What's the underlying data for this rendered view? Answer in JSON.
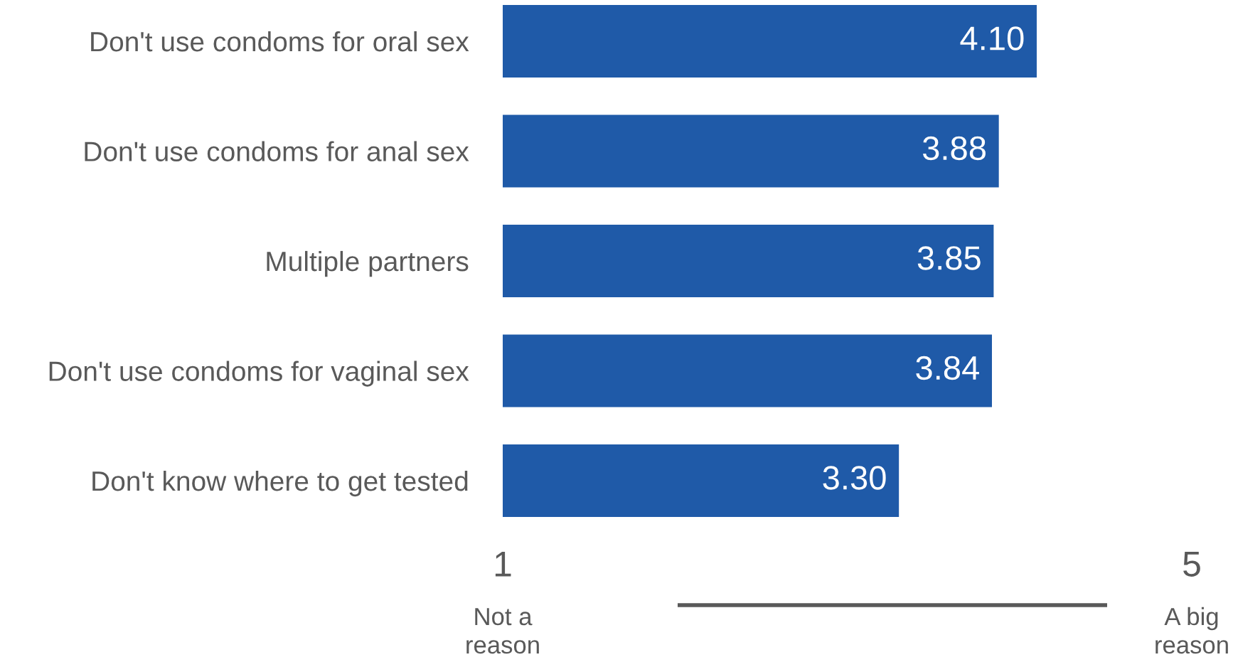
{
  "chart_data": {
    "type": "bar",
    "orientation": "horizontal",
    "categories": [
      "Don't use condoms for oral sex",
      "Don't use condoms for anal sex",
      "Multiple partners",
      "Don't use condoms for vaginal sex",
      "Don't know where to get tested"
    ],
    "values": [
      4.1,
      3.88,
      3.85,
      3.84,
      3.3
    ],
    "value_labels": [
      "4.10",
      "3.88",
      "3.85",
      "3.84",
      "3.30"
    ],
    "color": "#1f5aa8",
    "xlim": [
      1,
      5
    ],
    "xticks": [
      1,
      5
    ],
    "annotations": [
      "Not a\nreason",
      "A big\nreason"
    ]
  }
}
